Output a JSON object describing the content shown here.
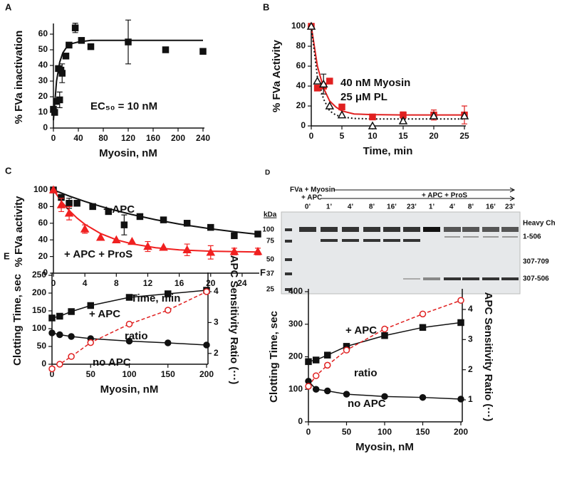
{
  "chart_data": [
    {
      "label": "A",
      "type": "scatter",
      "xlabel": "Myosin, nM",
      "ylabel": "% FVa inactivation",
      "xlim": [
        0,
        240
      ],
      "ylim": [
        0,
        65
      ],
      "xticks": [
        0,
        40,
        80,
        120,
        160,
        200,
        240
      ],
      "yticks": [
        0,
        10,
        20,
        30,
        40,
        50,
        60
      ],
      "annotation": "EC₅₀ = 10 nM",
      "series": [
        {
          "color": "#111111",
          "marker": "square",
          "filled": true,
          "line": "none",
          "x": [
            0,
            2,
            5,
            8,
            10,
            12,
            14,
            20,
            25,
            35,
            45,
            60,
            120,
            180,
            240
          ],
          "values": [
            12,
            10,
            17,
            38,
            18,
            37,
            35,
            46,
            53,
            64,
            56,
            52,
            55,
            50,
            49
          ],
          "errors": [
            null,
            null,
            null,
            null,
            5,
            null,
            6,
            null,
            null,
            3,
            null,
            null,
            14,
            null,
            null
          ],
          "fit": {
            "style": "solid",
            "x": [
              0,
              5,
              10,
              15,
              20,
              30,
              40,
              60,
              100,
              240
            ],
            "values": [
              5,
              30,
              42,
              48,
              51,
              54,
              55,
              56,
              56,
              56
            ]
          }
        }
      ]
    },
    {
      "label": "B",
      "type": "line",
      "xlabel": "Time, min",
      "ylabel": "% FVa Activity",
      "xlim": [
        0,
        25
      ],
      "ylim": [
        0,
        100
      ],
      "xticks": [
        0,
        5,
        10,
        15,
        20,
        25
      ],
      "yticks": [
        0,
        20,
        40,
        60,
        80,
        100
      ],
      "series": [
        {
          "name": "40 nM Myosin",
          "color": "#e02020",
          "marker": "square",
          "filled": true,
          "line": "none",
          "x": [
            0,
            1,
            2,
            3,
            5,
            10,
            15,
            20,
            25
          ],
          "values": [
            100,
            38,
            40,
            45,
            19,
            9,
            11,
            11,
            11
          ],
          "errors": [
            null,
            null,
            null,
            null,
            null,
            null,
            3,
            5,
            9
          ],
          "fit": {
            "style": "solid",
            "x": [
              0,
              1,
              2,
              3,
              4,
              5,
              7,
              10,
              15,
              25
            ],
            "values": [
              100,
              60,
              38,
              25,
              19,
              15,
              12,
              11.3,
              11,
              11
            ]
          }
        },
        {
          "name": "25 μM PL",
          "color": "#111111",
          "marker": "triangle",
          "filled": false,
          "line": "none",
          "x": [
            0,
            1,
            2,
            3,
            5,
            10,
            15,
            20,
            25
          ],
          "values": [
            100,
            45,
            42,
            20,
            11,
            0,
            5,
            10,
            10
          ],
          "errors": [
            null,
            null,
            10,
            null,
            null,
            null,
            null,
            null,
            null
          ],
          "fit": {
            "style": "dotted",
            "x": [
              0,
              1,
              2,
              3,
              4,
              5,
              7,
              10,
              15,
              25
            ],
            "values": [
              100,
              49,
              27,
              15,
              11,
              9,
              7.5,
              7,
              7,
              7
            ]
          }
        }
      ]
    },
    {
      "label": "C",
      "type": "line",
      "xlabel": "Time, min",
      "ylabel": "% FVa activity",
      "xlim": [
        0,
        26
      ],
      "ylim": [
        0,
        100
      ],
      "xticks": [
        0,
        4,
        8,
        12,
        16,
        20,
        24
      ],
      "yticks": [
        0,
        20,
        40,
        60,
        80,
        100
      ],
      "series": [
        {
          "name": "+ APC",
          "color": "#111111",
          "marker": "square",
          "filled": true,
          "line": "none",
          "x": [
            0,
            1,
            2,
            3,
            5,
            7,
            9,
            11,
            14,
            17,
            20,
            23,
            26
          ],
          "values": [
            100,
            91,
            84,
            84,
            80,
            74,
            58,
            68,
            64,
            60,
            55,
            45,
            47
          ],
          "errors": [
            null,
            null,
            6,
            null,
            null,
            null,
            12,
            null,
            null,
            null,
            null,
            null,
            3
          ],
          "fit": {
            "style": "solid",
            "x": [
              0,
              2,
              4,
              6,
              8,
              10,
              13,
              16,
              20,
              23,
              26
            ],
            "values": [
              100,
              92.7,
              86.2,
              80.3,
              75.1,
              70.4,
              64.2,
              59,
              53.3,
              49.8,
              46.7
            ]
          }
        },
        {
          "name": "+ APC + ProS",
          "color": "#f02020",
          "marker": "triangle",
          "filled": true,
          "line": "none",
          "x": [
            0,
            1,
            2,
            4,
            6,
            8,
            10,
            12,
            14,
            17,
            20,
            23,
            26
          ],
          "values": [
            100,
            82,
            72,
            53,
            43,
            40,
            38,
            32,
            31,
            28,
            25,
            26,
            26
          ],
          "errors": [
            null,
            8,
            8,
            5,
            null,
            null,
            null,
            6,
            null,
            7,
            8,
            4,
            4
          ],
          "fit": {
            "style": "solid",
            "x": [
              0,
              1,
              2,
              3,
              4,
              6,
              8,
              10,
              13,
              16,
              20,
              26
            ],
            "values": [
              100,
              86.4,
              75.3,
              66.2,
              58.7,
              47.6,
              40.1,
              35.2,
              30.6,
              28,
              26.4,
              25.4
            ]
          }
        }
      ]
    },
    {
      "label": "E",
      "type": "line",
      "xlabel": "Myosin, nM",
      "ylabel": "Clotting Time, sec",
      "y2label": "APC Sensitivity Ratio (···)",
      "xlim": [
        0,
        200
      ],
      "ylim": [
        0,
        250
      ],
      "y2lim": [
        1.65,
        4.53
      ],
      "xticks": [
        0,
        50,
        100,
        150,
        200
      ],
      "yticks": [
        0,
        50,
        100,
        150,
        200,
        250
      ],
      "y2ticks": [
        2,
        3,
        4
      ],
      "series": [
        {
          "name": "+ APC",
          "color": "#111111",
          "marker": "square",
          "filled": true,
          "line": "solid",
          "x": [
            0,
            10,
            25,
            50,
            100,
            150,
            200
          ],
          "values": [
            130,
            135,
            148,
            165,
            188,
            198,
            208
          ]
        },
        {
          "name": "no APC",
          "color": "#111111",
          "marker": "circle",
          "filled": true,
          "line": "solid",
          "x": [
            0,
            10,
            25,
            50,
            100,
            150,
            200
          ],
          "values": [
            88,
            83,
            78,
            72,
            65,
            60,
            54
          ]
        },
        {
          "name": "ratio",
          "color": "#e02020",
          "marker": "circle",
          "filled": false,
          "line": "dashed",
          "axis": "y2",
          "x": [
            0,
            10,
            25,
            50,
            100,
            150,
            200
          ],
          "values": [
            1.5,
            1.65,
            1.9,
            2.35,
            2.95,
            3.4,
            4.0
          ]
        }
      ]
    },
    {
      "label": "F",
      "type": "line",
      "xlabel": "Myosin, nM",
      "ylabel": "Clotting Time, sec",
      "y2label": "APC Sensitivity Ratio (···)",
      "xlim": [
        0,
        200
      ],
      "ylim": [
        0,
        400
      ],
      "y2lim": [
        0.27,
        4.59
      ],
      "xticks": [
        0,
        50,
        100,
        150,
        200
      ],
      "yticks": [
        0,
        100,
        200,
        300,
        400
      ],
      "y2ticks": [
        1,
        2,
        3,
        4
      ],
      "series": [
        {
          "name": "+ APC",
          "color": "#111111",
          "marker": "square",
          "filled": true,
          "line": "solid",
          "x": [
            0,
            10,
            25,
            50,
            100,
            150,
            200
          ],
          "values": [
            185,
            190,
            205,
            232,
            265,
            290,
            305
          ]
        },
        {
          "name": "no APC",
          "color": "#111111",
          "marker": "circle",
          "filled": true,
          "line": "solid",
          "x": [
            0,
            10,
            25,
            50,
            100,
            150,
            200
          ],
          "values": [
            125,
            100,
            95,
            85,
            78,
            75,
            70
          ]
        },
        {
          "name": "ratio",
          "color": "#e02020",
          "marker": "circle",
          "filled": false,
          "line": "dashed",
          "axis": "y2",
          "x": [
            0,
            10,
            25,
            50,
            100,
            150,
            200
          ],
          "values": [
            1.45,
            1.8,
            2.15,
            2.65,
            3.35,
            3.85,
            4.3
          ]
        }
      ]
    }
  ],
  "gel": {
    "label": "D",
    "treatment_1": "FVa + Myosin",
    "treatment_2": "+ APC",
    "treatment_3": "+ APC + ProS",
    "kda_title": "kDa",
    "kda": [
      "100",
      "75",
      "50",
      "37",
      "25"
    ],
    "lanes": [
      "0’",
      "1’",
      "4’",
      "8’",
      "16’",
      "23’",
      "1’",
      "4’",
      "8’",
      "16’",
      "23’"
    ],
    "bands": [
      "Heavy Ch",
      "1-506",
      "307-709",
      "307-506"
    ]
  }
}
